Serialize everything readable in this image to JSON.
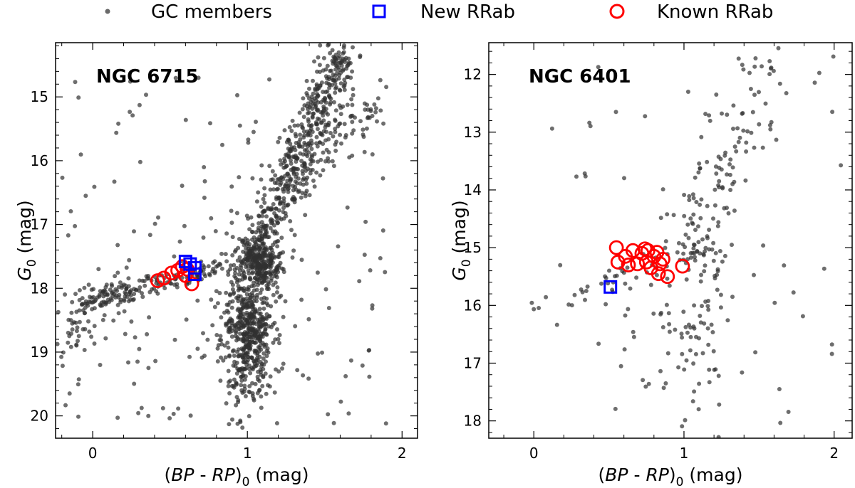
{
  "legend": {
    "items": [
      {
        "label": "GC members",
        "marker": "dot",
        "color": "#000000"
      },
      {
        "label": "New RRab",
        "marker": "square",
        "color": "#0000ff"
      },
      {
        "label": "Known RRab",
        "marker": "circle",
        "color": "#ff0000"
      }
    ]
  },
  "chart_data": [
    {
      "type": "scatter",
      "title": "NGC 6715",
      "xlabel_parts": [
        "(",
        "BP",
        " - ",
        "RP",
        ")",
        "0",
        " (mag)"
      ],
      "ylabel_parts": [
        "G",
        "0",
        " (mag)"
      ],
      "xlim": [
        -0.24,
        2.1
      ],
      "ylim": [
        20.35,
        14.15
      ],
      "x_ticks": [
        0,
        1,
        2
      ],
      "y_ticks": [
        15,
        16,
        17,
        18,
        19,
        20
      ],
      "members_note": "approx 1800 points sampled to represent distribution",
      "members_components": [
        {
          "kind": "rgb_line",
          "x0": 1.02,
          "y0": 17.6,
          "x1": 1.62,
          "y1": 14.3,
          "spread_x": 0.06,
          "spread_y": 0.15,
          "n": 520
        },
        {
          "kind": "agb_branch",
          "x0": 1.3,
          "y0": 16.5,
          "x1": 1.82,
          "y1": 15.1,
          "spread_x": 0.05,
          "spread_y": 0.15,
          "n": 90
        },
        {
          "kind": "clump",
          "cx": 1.08,
          "cy": 17.6,
          "sx": 0.07,
          "sy": 0.18,
          "n": 260
        },
        {
          "kind": "subgiant_column",
          "cx": 1.0,
          "cy": 18.7,
          "sx": 0.08,
          "sy": 0.5,
          "n": 520
        },
        {
          "kind": "horizontal_branch",
          "x0": -0.1,
          "y0": 18.25,
          "x1": 0.85,
          "y1": 17.65,
          "spread_x": 0.05,
          "spread_y": 0.08,
          "n": 170
        },
        {
          "kind": "blue_hb_tail",
          "x0": -0.2,
          "y0": 18.9,
          "x1": 0.2,
          "y1": 18.0,
          "spread_x": 0.06,
          "spread_y": 0.2,
          "n": 60
        },
        {
          "kind": "field_scatter",
          "xmin": -0.2,
          "xmax": 1.9,
          "ymin": 14.6,
          "ymax": 20.2,
          "n": 180
        }
      ],
      "new_rrab": [
        {
          "x": 0.6,
          "y": 17.58
        },
        {
          "x": 0.63,
          "y": 17.62
        },
        {
          "x": 0.66,
          "y": 17.68
        },
        {
          "x": 0.66,
          "y": 17.78
        }
      ],
      "known_rrab": [
        {
          "x": 0.42,
          "y": 17.88
        },
        {
          "x": 0.46,
          "y": 17.84
        },
        {
          "x": 0.51,
          "y": 17.76
        },
        {
          "x": 0.55,
          "y": 17.72
        },
        {
          "x": 0.58,
          "y": 17.66
        },
        {
          "x": 0.61,
          "y": 17.7
        },
        {
          "x": 0.6,
          "y": 17.8
        },
        {
          "x": 0.64,
          "y": 17.93
        }
      ]
    },
    {
      "type": "scatter",
      "title": "NGC 6401",
      "xlabel_parts": [
        "(",
        "BP",
        " - ",
        "RP",
        ")",
        "0",
        " (mag)"
      ],
      "ylabel_parts": [
        "G",
        "0",
        " (mag)"
      ],
      "xlim": [
        -0.3,
        2.12
      ],
      "ylim": [
        18.3,
        11.45
      ],
      "x_ticks": [
        0,
        1,
        2
      ],
      "y_ticks": [
        12,
        13,
        14,
        15,
        16,
        17,
        18
      ],
      "members_note": "approx 300 points sampled to represent distribution",
      "members_components": [
        {
          "kind": "rgb_line",
          "x0": 1.0,
          "y0": 15.0,
          "x1": 1.55,
          "y1": 12.0,
          "spread_x": 0.1,
          "spread_y": 0.3,
          "n": 110
        },
        {
          "kind": "clump",
          "cx": 1.12,
          "cy": 15.1,
          "sx": 0.08,
          "sy": 0.15,
          "n": 30
        },
        {
          "kind": "horizontal_branch",
          "x0": 0.1,
          "y0": 15.9,
          "x1": 0.95,
          "y1": 15.2,
          "spread_x": 0.08,
          "spread_y": 0.15,
          "n": 40
        },
        {
          "kind": "subgiant_column",
          "cx": 1.05,
          "cy": 16.3,
          "sx": 0.15,
          "sy": 0.6,
          "n": 70
        },
        {
          "kind": "field_scatter",
          "xmin": 0.0,
          "xmax": 2.05,
          "ymin": 11.6,
          "ymax": 18.1,
          "n": 60
        }
      ],
      "new_rrab": [
        {
          "x": 0.51,
          "y": 15.68
        }
      ],
      "known_rrab": [
        {
          "x": 0.55,
          "y": 15.0
        },
        {
          "x": 0.56,
          "y": 15.25
        },
        {
          "x": 0.61,
          "y": 15.15
        },
        {
          "x": 0.63,
          "y": 15.3
        },
        {
          "x": 0.66,
          "y": 15.05
        },
        {
          "x": 0.69,
          "y": 15.28
        },
        {
          "x": 0.72,
          "y": 15.1
        },
        {
          "x": 0.74,
          "y": 15.02
        },
        {
          "x": 0.76,
          "y": 15.05
        },
        {
          "x": 0.75,
          "y": 15.25
        },
        {
          "x": 0.78,
          "y": 15.35
        },
        {
          "x": 0.8,
          "y": 15.15
        },
        {
          "x": 0.82,
          "y": 15.08
        },
        {
          "x": 0.84,
          "y": 15.28
        },
        {
          "x": 0.83,
          "y": 15.45
        },
        {
          "x": 0.86,
          "y": 15.2
        },
        {
          "x": 0.89,
          "y": 15.5
        },
        {
          "x": 0.99,
          "y": 15.32
        }
      ]
    }
  ]
}
